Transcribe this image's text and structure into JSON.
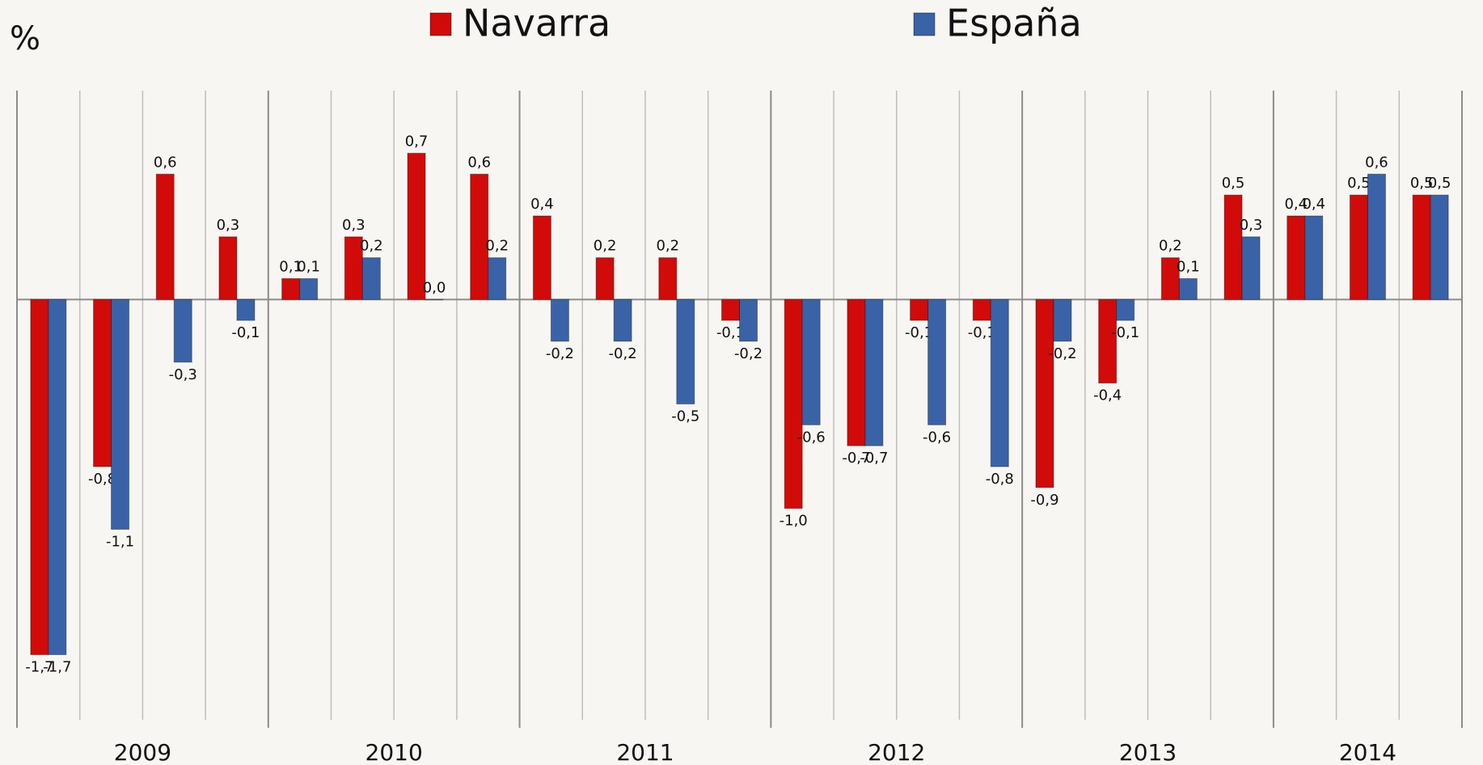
{
  "chart_data": {
    "type": "bar",
    "y_label": "%",
    "categories": [
      null,
      null,
      null,
      null,
      null,
      null,
      null,
      null,
      null,
      null,
      null,
      null,
      null,
      null,
      null,
      null,
      null,
      null,
      null,
      null,
      null,
      null,
      null
    ],
    "groups": [
      {
        "label": "2009",
        "count": 4
      },
      {
        "label": "2010",
        "count": 4
      },
      {
        "label": "2011",
        "count": 4
      },
      {
        "label": "2012",
        "count": 4
      },
      {
        "label": "2013",
        "count": 4
      },
      {
        "label": "2014",
        "count": 3
      }
    ],
    "series": [
      {
        "name": "Navarra",
        "color": "#d10a0a",
        "values": [
          -1.7,
          -0.8,
          0.6,
          0.3,
          0.1,
          0.3,
          0.7,
          0.6,
          0.4,
          0.2,
          0.2,
          -0.1,
          -1.0,
          -0.7,
          -0.1,
          -0.1,
          -0.9,
          -0.4,
          0.2,
          0.5,
          0.4,
          0.5,
          0.5
        ],
        "value_labels": [
          "-1,7",
          "-0,8",
          "0,6",
          "0,3",
          "0,1",
          "0,3",
          "0,7",
          "0,6",
          "0,4",
          "0,2",
          "0,2",
          "-0,1",
          "-1,0",
          "-0,7",
          "-0,1",
          "-0,1",
          "-0,9",
          "-0,4",
          "0,2",
          "0,5",
          "0,4",
          "0,5",
          "0,5"
        ]
      },
      {
        "name": "España",
        "color": "#3a62a7",
        "values": [
          -1.7,
          -1.1,
          -0.3,
          -0.1,
          0.1,
          0.2,
          0.0,
          0.2,
          -0.2,
          -0.2,
          -0.5,
          -0.2,
          -0.6,
          -0.7,
          -0.6,
          -0.8,
          -0.2,
          -0.1,
          0.1,
          0.3,
          0.4,
          0.6,
          0.5
        ],
        "value_labels": [
          "-1,7",
          "-1,1",
          "-0,3",
          "-0,1",
          "0,1",
          "0,2",
          "0,0",
          "0,2",
          "-0,2",
          "-0,2",
          "-0,5",
          "-0,2",
          "-0,6",
          "-0,7",
          "-0,6",
          "-0,8",
          "-0,2",
          "-0,1",
          "0,1",
          "0,3",
          "0,4",
          "0,6",
          "0,5"
        ]
      }
    ],
    "ylim": [
      -2.05,
      1.0
    ],
    "legend": "top"
  }
}
